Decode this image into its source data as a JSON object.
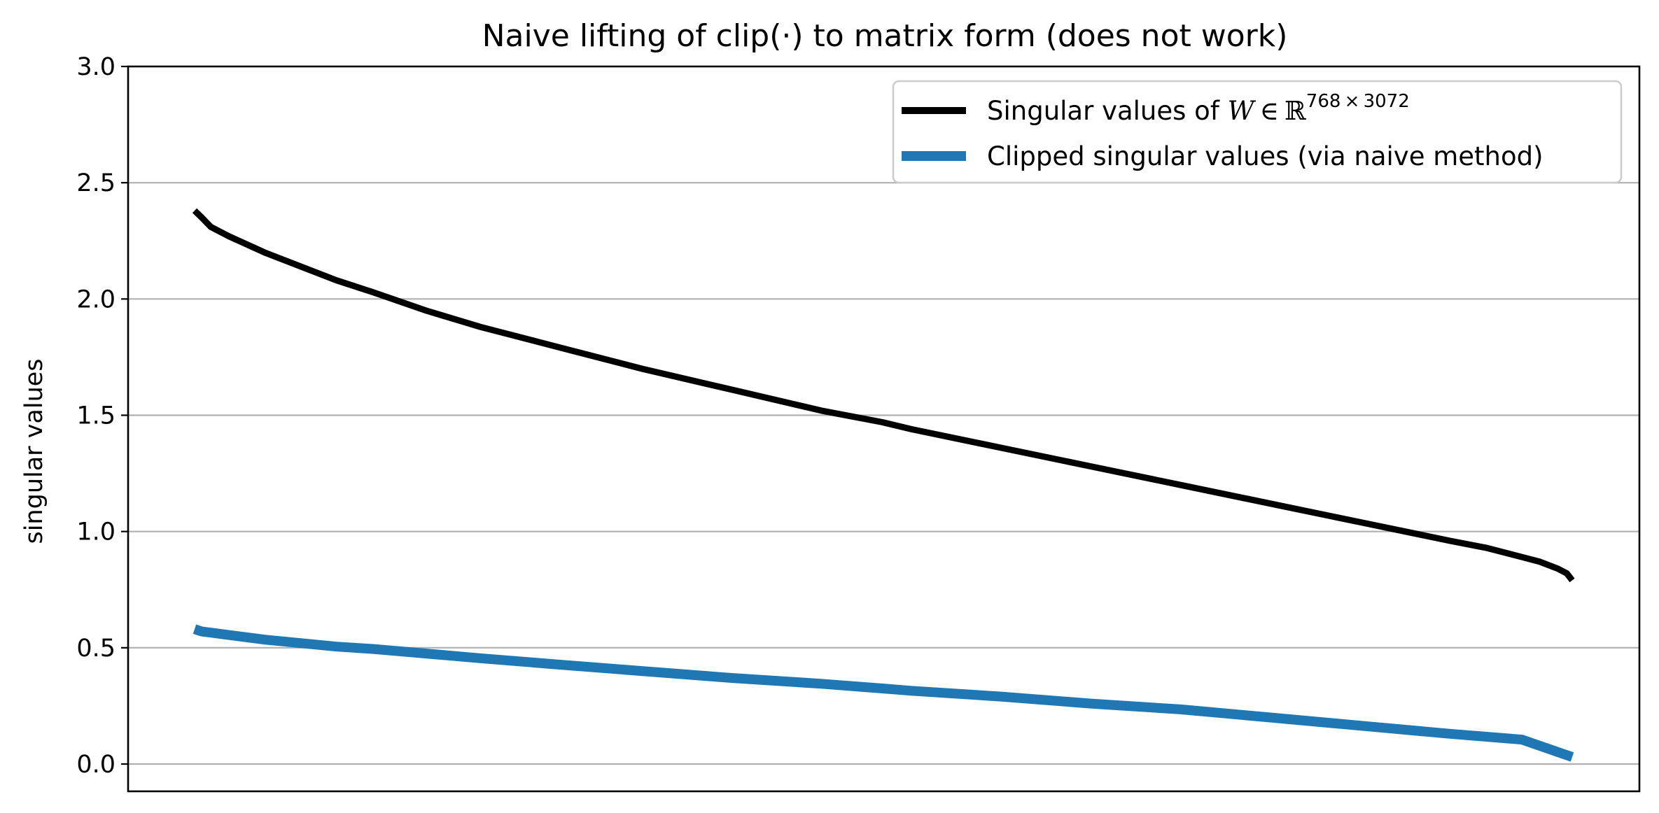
{
  "chart_data": {
    "type": "line",
    "title": "Naive lifting of clip(·) to matrix form (does not work)",
    "xlabel": "",
    "ylabel": "singular values",
    "ylim": [
      0,
      3
    ],
    "yticks": [
      "0.0",
      "0.5",
      "1.0",
      "1.5",
      "2.0",
      "2.5",
      "3.0"
    ],
    "xticks": [],
    "grid": "horizontal",
    "legend_position": "top-right",
    "x_count": 768,
    "series": [
      {
        "name": "Singular values of W ∈ ℝ^{768×3072}",
        "legend_parts": {
          "prefix": "Singular values of ",
          "matrix": "W",
          "relation": "∈",
          "space": "ℝ",
          "exponent": "768 × 3072"
        },
        "color": "#000000",
        "x": [
          1,
          5,
          10,
          20,
          40,
          60,
          80,
          100,
          130,
          160,
          200,
          250,
          300,
          350,
          384,
          400,
          450,
          500,
          550,
          600,
          650,
          700,
          720,
          740,
          750,
          760,
          765,
          768
        ],
        "y": [
          2.38,
          2.35,
          2.31,
          2.27,
          2.2,
          2.14,
          2.08,
          2.03,
          1.95,
          1.88,
          1.8,
          1.7,
          1.61,
          1.52,
          1.47,
          1.44,
          1.36,
          1.28,
          1.2,
          1.12,
          1.04,
          0.96,
          0.93,
          0.89,
          0.87,
          0.84,
          0.82,
          0.79
        ]
      },
      {
        "name": "Clipped singular values (via naive method)",
        "color": "#1f77b4",
        "x": [
          1,
          5,
          10,
          20,
          40,
          60,
          80,
          100,
          130,
          160,
          200,
          250,
          300,
          350,
          384,
          400,
          450,
          500,
          550,
          600,
          650,
          700,
          740,
          768
        ],
        "y": [
          0.58,
          0.57,
          0.565,
          0.555,
          0.535,
          0.52,
          0.505,
          0.495,
          0.475,
          0.455,
          0.43,
          0.4,
          0.37,
          0.345,
          0.325,
          0.315,
          0.29,
          0.26,
          0.235,
          0.2,
          0.165,
          0.13,
          0.105,
          0.03
        ]
      }
    ]
  }
}
